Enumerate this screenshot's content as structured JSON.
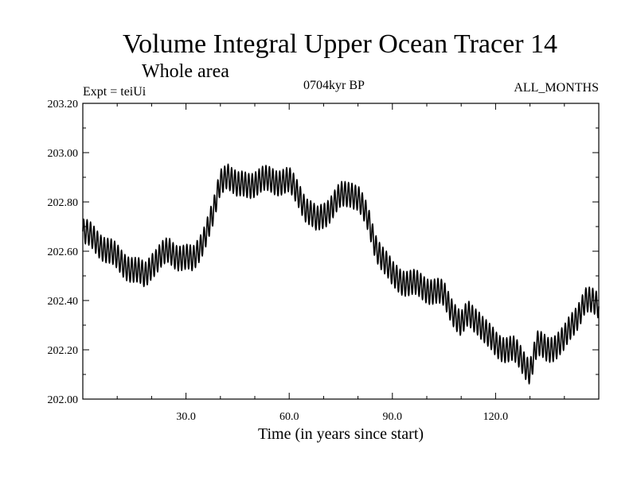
{
  "chart_data": {
    "type": "line",
    "title": "Volume Integral Upper Ocean Tracer 14",
    "subtitle": "Whole area",
    "expt_label": "Expt = teiUi",
    "period_label": "0704kyr BP",
    "months_label": "ALL_MONTHS",
    "xlabel": "Time (in years since start)",
    "ylabel": "",
    "xlim": [
      0,
      150
    ],
    "ylim": [
      202.0,
      203.2
    ],
    "x_ticks": [
      30,
      60,
      90,
      120
    ],
    "x_tick_labels": [
      "30.0",
      "60.0",
      "90.0",
      "120.0"
    ],
    "y_ticks": [
      202.0,
      202.2,
      202.4,
      202.6,
      202.8,
      203.0,
      203.2
    ],
    "y_tick_labels": [
      "202.00",
      "202.20",
      "202.40",
      "202.60",
      "202.80",
      "203.00",
      "203.20"
    ],
    "cycle": {
      "period_years": 1,
      "amplitude": 0.05
    },
    "series": [
      {
        "name": "Volume Integral",
        "color": "#000000",
        "trend": [
          [
            0,
            202.68
          ],
          [
            5,
            202.63
          ],
          [
            10,
            202.57
          ],
          [
            15,
            202.52
          ],
          [
            18,
            202.5
          ],
          [
            20,
            202.55
          ],
          [
            25,
            202.6
          ],
          [
            28,
            202.58
          ],
          [
            32,
            202.56
          ],
          [
            35,
            202.65
          ],
          [
            38,
            202.75
          ],
          [
            40,
            202.88
          ],
          [
            42,
            202.92
          ],
          [
            45,
            202.86
          ],
          [
            50,
            202.88
          ],
          [
            55,
            202.89
          ],
          [
            60,
            202.88
          ],
          [
            63,
            202.83
          ],
          [
            65,
            202.77
          ],
          [
            68,
            202.72
          ],
          [
            70,
            202.75
          ],
          [
            75,
            202.82
          ],
          [
            78,
            202.84
          ],
          [
            80,
            202.82
          ],
          [
            83,
            202.72
          ],
          [
            85,
            202.63
          ],
          [
            88,
            202.55
          ],
          [
            90,
            202.5
          ],
          [
            95,
            202.47
          ],
          [
            100,
            202.45
          ],
          [
            105,
            202.42
          ],
          [
            108,
            202.35
          ],
          [
            110,
            202.3
          ],
          [
            112,
            202.34
          ],
          [
            115,
            202.32
          ],
          [
            118,
            202.25
          ],
          [
            120,
            202.22
          ],
          [
            125,
            202.2
          ],
          [
            128,
            202.15
          ],
          [
            130,
            202.12
          ],
          [
            132,
            202.22
          ],
          [
            135,
            202.2
          ],
          [
            140,
            202.24
          ],
          [
            143,
            202.32
          ],
          [
            146,
            202.4
          ],
          [
            150,
            202.38
          ]
        ]
      }
    ]
  }
}
